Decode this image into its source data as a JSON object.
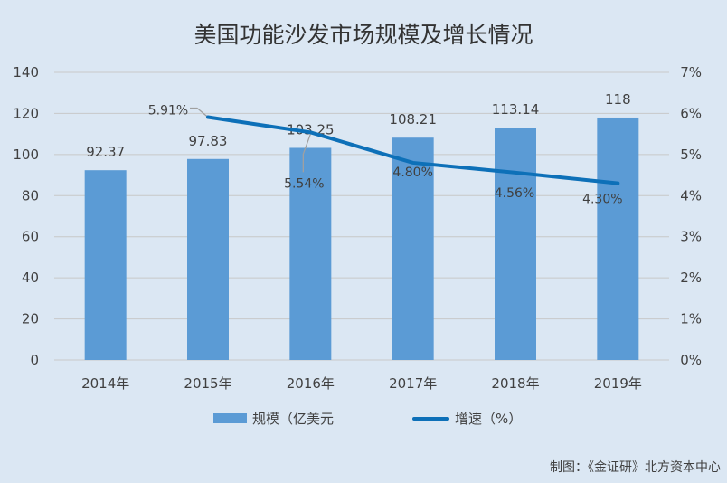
{
  "chart_data": {
    "type": "bar",
    "title": "美国功能沙发市场规模及增长情况",
    "categories": [
      "2014年",
      "2015年",
      "2016年",
      "2017年",
      "2018年",
      "2019年"
    ],
    "series": [
      {
        "name": "规模（亿美元",
        "type": "bar",
        "axis": "left",
        "values": [
          92.37,
          97.83,
          103.25,
          108.21,
          113.14,
          118
        ],
        "labels": [
          "92.37",
          "97.83",
          "103.25",
          "108.21",
          "113.14",
          "118"
        ]
      },
      {
        "name": "增速（%）",
        "type": "line",
        "axis": "right",
        "values": [
          null,
          5.91,
          5.54,
          4.8,
          4.56,
          4.3
        ],
        "labels": [
          "",
          "5.91%",
          "5.54%",
          "4.80%",
          "4.56%",
          "4.30%"
        ]
      }
    ],
    "y_left": {
      "min": 0,
      "max": 140,
      "ticks": [
        "0",
        "20",
        "40",
        "60",
        "80",
        "100",
        "120",
        "140"
      ]
    },
    "y_right": {
      "min": 0,
      "max": 7,
      "ticks": [
        "0%",
        "1%",
        "2%",
        "3%",
        "4%",
        "5%",
        "6%",
        "7%"
      ]
    },
    "grid": true,
    "legend_position": "bottom"
  },
  "credit": "制图：《金证研》北方资本中心",
  "colors": {
    "bar": "#5b9bd5",
    "line": "#0d70b8",
    "background": "#dbe7f3",
    "grid": "#c8c8c8",
    "callout": "#a0a0a0"
  }
}
